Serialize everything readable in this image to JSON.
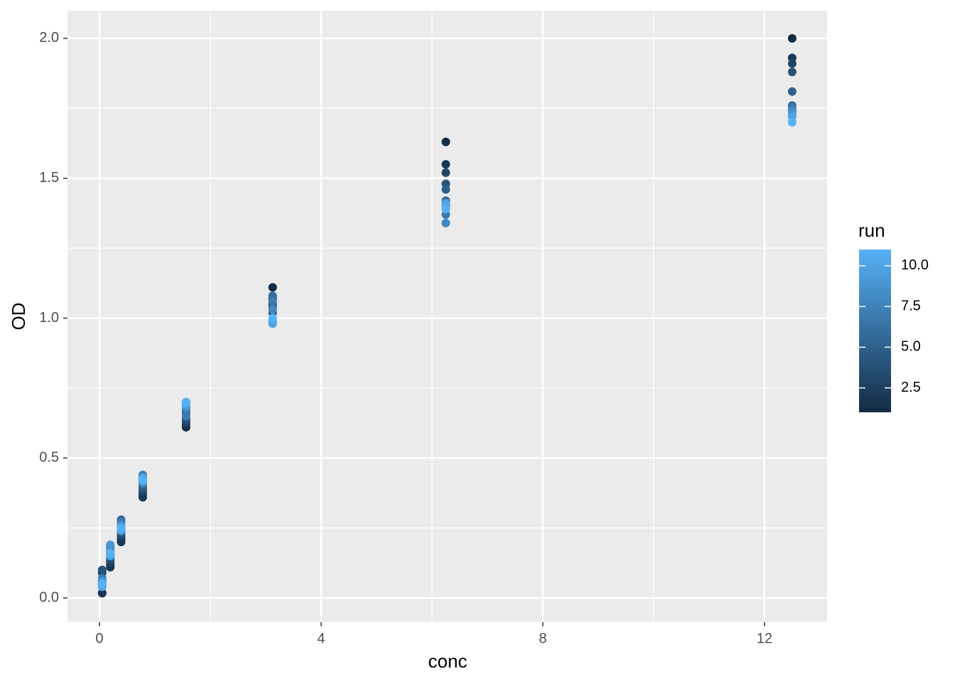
{
  "chart_data": {
    "type": "scatter",
    "x_label": "conc",
    "y_label": "OD",
    "x": [
      0.04882812,
      0.04882812,
      0.04882812,
      0.04882812,
      0.04882812,
      0.04882812,
      0.04882812,
      0.04882812,
      0.04882812,
      0.04882812,
      0.04882812,
      0.1953125,
      0.1953125,
      0.1953125,
      0.1953125,
      0.1953125,
      0.1953125,
      0.1953125,
      0.1953125,
      0.1953125,
      0.1953125,
      0.1953125,
      0.390625,
      0.390625,
      0.390625,
      0.390625,
      0.390625,
      0.390625,
      0.390625,
      0.390625,
      0.390625,
      0.390625,
      0.390625,
      0.78125,
      0.78125,
      0.78125,
      0.78125,
      0.78125,
      0.78125,
      0.78125,
      0.78125,
      0.78125,
      0.78125,
      0.78125,
      1.5625,
      1.5625,
      1.5625,
      1.5625,
      1.5625,
      1.5625,
      1.5625,
      1.5625,
      1.5625,
      1.5625,
      1.5625,
      3.125,
      3.125,
      3.125,
      3.125,
      3.125,
      3.125,
      3.125,
      3.125,
      3.125,
      3.125,
      3.125,
      6.25,
      6.25,
      6.25,
      6.25,
      6.25,
      6.25,
      6.25,
      6.25,
      6.25,
      6.25,
      6.25,
      12.5,
      12.5,
      12.5,
      12.5,
      12.5,
      12.5,
      12.5,
      12.5,
      12.5,
      12.5,
      12.5
    ],
    "values": [
      0.017,
      0.018,
      0.09,
      0.1,
      0.06,
      0.05,
      0.07,
      0.05,
      0.06,
      0.04,
      0.05,
      0.12,
      0.11,
      0.13,
      0.14,
      0.15,
      0.16,
      0.18,
      0.17,
      0.19,
      0.15,
      0.16,
      0.21,
      0.2,
      0.22,
      0.23,
      0.24,
      0.28,
      0.27,
      0.25,
      0.26,
      0.24,
      0.25,
      0.37,
      0.36,
      0.38,
      0.39,
      0.4,
      0.43,
      0.44,
      0.41,
      0.42,
      0.43,
      0.42,
      0.61,
      0.62,
      0.63,
      0.64,
      0.66,
      0.67,
      0.65,
      0.68,
      0.7,
      0.69,
      0.7,
      1.11,
      1.07,
      1.05,
      1.02,
      1.04,
      1.08,
      1.06,
      1.03,
      0.99,
      0.98,
      1.0,
      1.63,
      1.55,
      1.52,
      1.48,
      1.46,
      1.42,
      1.37,
      1.34,
      1.4,
      1.41,
      1.39,
      2.0,
      1.93,
      1.91,
      1.88,
      1.81,
      1.76,
      1.75,
      1.74,
      1.73,
      1.72,
      1.7
    ],
    "run": [
      1,
      2,
      3,
      4,
      5,
      6,
      7,
      8,
      9,
      10,
      11,
      1,
      2,
      3,
      4,
      5,
      6,
      7,
      8,
      9,
      10,
      11,
      1,
      2,
      3,
      4,
      5,
      6,
      7,
      8,
      9,
      10,
      11,
      1,
      2,
      3,
      4,
      5,
      6,
      7,
      8,
      9,
      10,
      11,
      1,
      2,
      3,
      4,
      5,
      6,
      7,
      8,
      9,
      10,
      11,
      1,
      2,
      3,
      4,
      5,
      6,
      7,
      8,
      9,
      10,
      11,
      1,
      2,
      3,
      4,
      5,
      6,
      7,
      8,
      9,
      10,
      11,
      1,
      2,
      3,
      4,
      5,
      6,
      7,
      8,
      9,
      10,
      11
    ],
    "xlim": [
      -0.577,
      13.13
    ],
    "ylim": [
      -0.086,
      2.099
    ],
    "xticks": [
      0,
      4,
      8,
      12
    ],
    "yticks": [
      {
        "value": 0,
        "label": "0.0"
      },
      0.5,
      {
        "value": 1,
        "label": "1.0"
      },
      1.5,
      {
        "value": 2,
        "label": "2.0"
      }
    ],
    "x_minor_ticks": [
      2,
      6,
      10
    ],
    "y_minor_ticks": [
      0.25,
      0.75,
      1.25,
      1.75
    ],
    "grid": true,
    "legend": {
      "title": "run",
      "lim": [
        1,
        11
      ],
      "ticks": [
        2.5,
        {
          "value": 5,
          "label": "5.0"
        },
        7.5,
        {
          "value": 10,
          "label": "10.0"
        }
      ],
      "low": "#132B43",
      "high": "#56B1F7",
      "position": "right"
    }
  }
}
